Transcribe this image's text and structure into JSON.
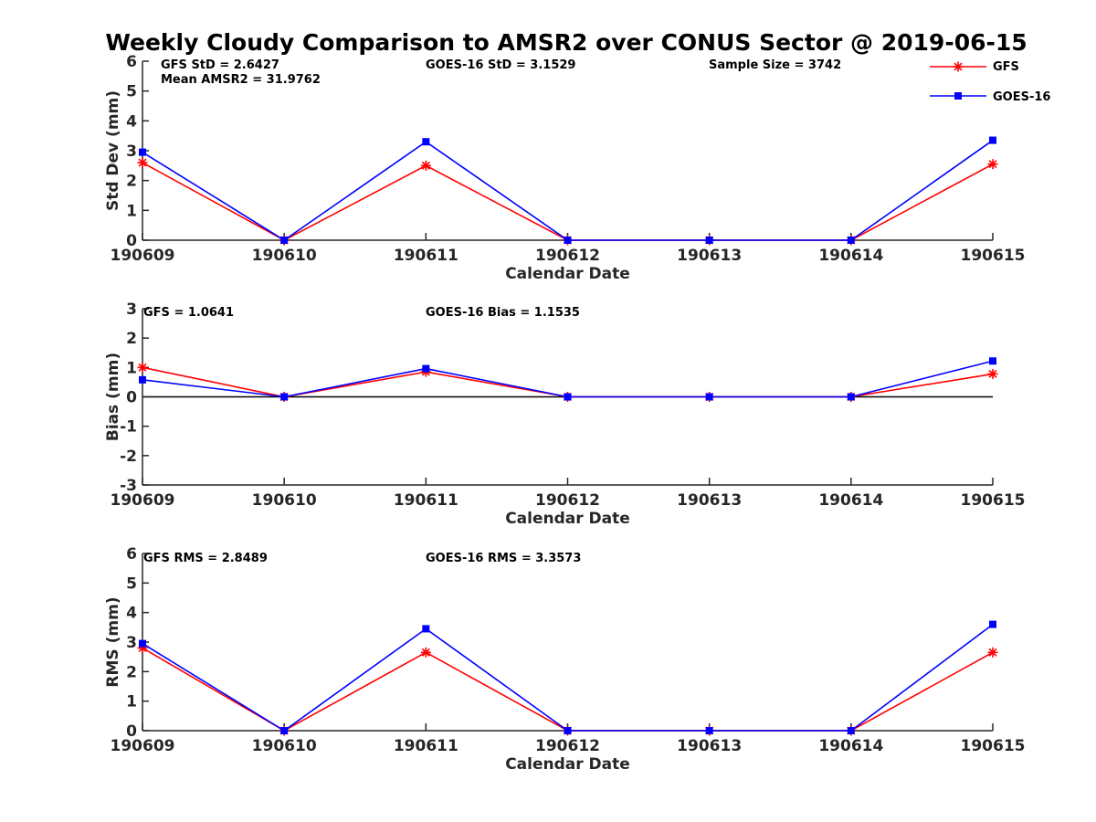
{
  "title": "Weekly Cloudy Comparison to AMSR2 over CONUS Sector @ 2019-06-15",
  "legend": {
    "placement": "top-right",
    "items": [
      {
        "label": "GFS",
        "color": "#ff0000",
        "marker": "asterisk"
      },
      {
        "label": "GOES-16",
        "color": "#0000ff",
        "marker": "square"
      }
    ]
  },
  "chart_data": [
    {
      "type": "line",
      "xlabel": "Calendar Date",
      "ylabel": "Std Dev (mm)",
      "x": [
        "190609",
        "190610",
        "190611",
        "190612",
        "190613",
        "190614",
        "190615"
      ],
      "ylim": [
        0,
        6
      ],
      "yticks": [
        "0",
        "1",
        "2",
        "3",
        "4",
        "5",
        "6"
      ],
      "zero_line": false,
      "annotations": [
        "GFS StD = 2.6427",
        "Mean AMSR2 = 31.9762",
        "GOES-16 StD = 3.1529",
        "Sample Size = 3742"
      ],
      "series": [
        {
          "name": "GFS",
          "color": "#ff0000",
          "values": [
            2.6,
            0,
            2.5,
            0,
            0,
            0,
            2.55
          ]
        },
        {
          "name": "GOES-16",
          "color": "#0000ff",
          "values": [
            2.95,
            0,
            3.3,
            0,
            0,
            0,
            3.35
          ]
        }
      ]
    },
    {
      "type": "line",
      "xlabel": "Calendar Date",
      "ylabel": "Bias (mm)",
      "x": [
        "190609",
        "190610",
        "190611",
        "190612",
        "190613",
        "190614",
        "190615"
      ],
      "ylim": [
        -3,
        3
      ],
      "yticks": [
        "-3",
        "-2",
        "-1",
        "0",
        "1",
        "2",
        "3"
      ],
      "zero_line": true,
      "annotations": [
        "GFS = 1.0641",
        "GOES-16 Bias  = 1.1535"
      ],
      "series": [
        {
          "name": "GFS",
          "color": "#ff0000",
          "values": [
            1.0,
            0,
            0.85,
            0,
            0,
            0,
            0.78
          ]
        },
        {
          "name": "GOES-16",
          "color": "#0000ff",
          "values": [
            0.58,
            0,
            0.96,
            0,
            0,
            0,
            1.22
          ]
        }
      ]
    },
    {
      "type": "line",
      "xlabel": "Calendar Date",
      "ylabel": "RMS (mm)",
      "x": [
        "190609",
        "190610",
        "190611",
        "190612",
        "190613",
        "190614",
        "190615"
      ],
      "ylim": [
        0,
        6
      ],
      "yticks": [
        "0",
        "1",
        "2",
        "3",
        "4",
        "5",
        "6"
      ],
      "zero_line": false,
      "annotations": [
        "GFS RMS = 2.8489",
        "GOES-16 RMS = 3.3573"
      ],
      "series": [
        {
          "name": "GFS",
          "color": "#ff0000",
          "values": [
            2.8,
            0,
            2.65,
            0,
            0,
            0,
            2.65
          ]
        },
        {
          "name": "GOES-16",
          "color": "#0000ff",
          "values": [
            2.95,
            0,
            3.45,
            0,
            0,
            0,
            3.6
          ]
        }
      ]
    }
  ]
}
